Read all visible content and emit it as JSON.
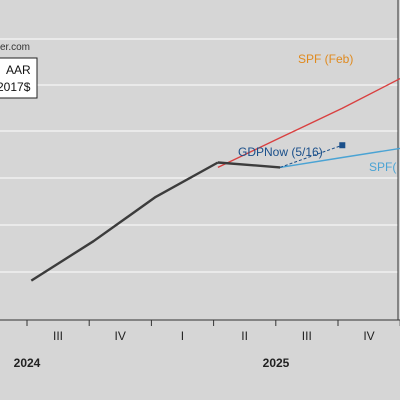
{
  "source_credit": "er.com",
  "legend_lines": [
    "AAR",
    "2017$"
  ],
  "colors": {
    "background": "#d6d6d6",
    "actual": "#3c3c3c",
    "spf_feb": "#d94040",
    "spf_feb_label": "#e08a1e",
    "spf_may": "#4aa3d4",
    "gdpnow": "#1a4f8a",
    "grid": "#ffffff"
  },
  "chart_data": {
    "type": "line",
    "x_tick_labels": [
      "III",
      "IV",
      "I",
      "II",
      "III",
      "IV"
    ],
    "year_labels": [
      "2024",
      "2025"
    ],
    "series": [
      {
        "name": "",
        "key": "actual",
        "x": [
          1.5,
          2.5,
          3.5,
          4.5
        ],
        "y": [
          0.58,
          0.66,
          0.75,
          0.82
        ]
      },
      {
        "name": "",
        "key": "actual",
        "x": [
          4.5,
          5.5
        ],
        "y": [
          0.82,
          0.81
        ]
      },
      {
        "name": "SPF (Feb)",
        "key": "spf_feb",
        "x": [
          4.5,
          5.5,
          6.5,
          7.5,
          8.5
        ],
        "y": [
          0.81,
          0.87,
          0.93,
          0.995,
          1.06
        ]
      },
      {
        "name": "SPF(",
        "key": "spf_may",
        "x": [
          5.5,
          6.5,
          7.5,
          8.5
        ],
        "y": [
          0.81,
          0.83,
          0.85,
          0.89
        ]
      },
      {
        "name": "GDPNow (5/16)",
        "key": "gdpnow",
        "x": [
          5.5,
          6.5
        ],
        "y": [
          0.81,
          0.855
        ]
      }
    ],
    "xlim": [
      1.5,
      9.0
    ],
    "ylim": [
      0.5,
      1.15
    ],
    "grid": true
  }
}
